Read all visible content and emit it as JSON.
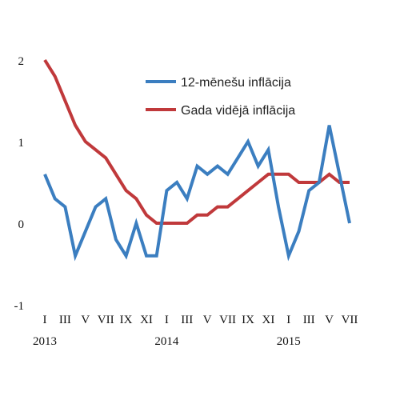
{
  "chart_data": {
    "type": "line",
    "title": "",
    "xlabel": "",
    "ylabel": "",
    "ylim": [
      -1,
      2
    ],
    "yticks": [
      "2",
      "1",
      "0",
      "-1"
    ],
    "grid": false,
    "legend_position": "top-center",
    "x_tick_labels": [
      "I",
      "III",
      "V",
      "VII",
      "IX",
      "XI",
      "I",
      "III",
      "V",
      "VII",
      "IX",
      "XI",
      "I",
      "III",
      "V",
      "VII"
    ],
    "x_year_labels": [
      "2013",
      "2014",
      "2015"
    ],
    "categories": [
      "2013-I",
      "2013-II",
      "2013-III",
      "2013-IV",
      "2013-V",
      "2013-VI",
      "2013-VII",
      "2013-VIII",
      "2013-IX",
      "2013-X",
      "2013-XI",
      "2013-XII",
      "2014-I",
      "2014-II",
      "2014-III",
      "2014-IV",
      "2014-V",
      "2014-VI",
      "2014-VII",
      "2014-VIII",
      "2014-IX",
      "2014-X",
      "2014-XI",
      "2014-XII",
      "2015-I",
      "2015-II",
      "2015-III",
      "2015-IV",
      "2015-V",
      "2015-VI",
      "2015-VII"
    ],
    "series": [
      {
        "name": "12-mēnešu inflācija",
        "color": "#3b7ec0",
        "values": [
          0.6,
          0.3,
          0.2,
          -0.4,
          -0.1,
          0.2,
          0.3,
          -0.2,
          -0.4,
          0.0,
          -0.4,
          -0.4,
          0.4,
          0.5,
          0.3,
          0.7,
          0.6,
          0.7,
          0.6,
          0.8,
          1.0,
          0.7,
          0.9,
          0.2,
          -0.4,
          -0.1,
          0.4,
          0.5,
          1.2,
          0.6,
          0.0
        ]
      },
      {
        "name": "Gada vidējā inflācija",
        "color": "#c0393b",
        "values": [
          2.0,
          1.8,
          1.5,
          1.2,
          1.0,
          0.9,
          0.8,
          0.6,
          0.4,
          0.3,
          0.1,
          0.0,
          0.0,
          0.0,
          0.0,
          0.1,
          0.1,
          0.2,
          0.2,
          0.3,
          0.4,
          0.5,
          0.6,
          0.6,
          0.6,
          0.5,
          0.5,
          0.5,
          0.6,
          0.5,
          0.5
        ]
      }
    ]
  }
}
